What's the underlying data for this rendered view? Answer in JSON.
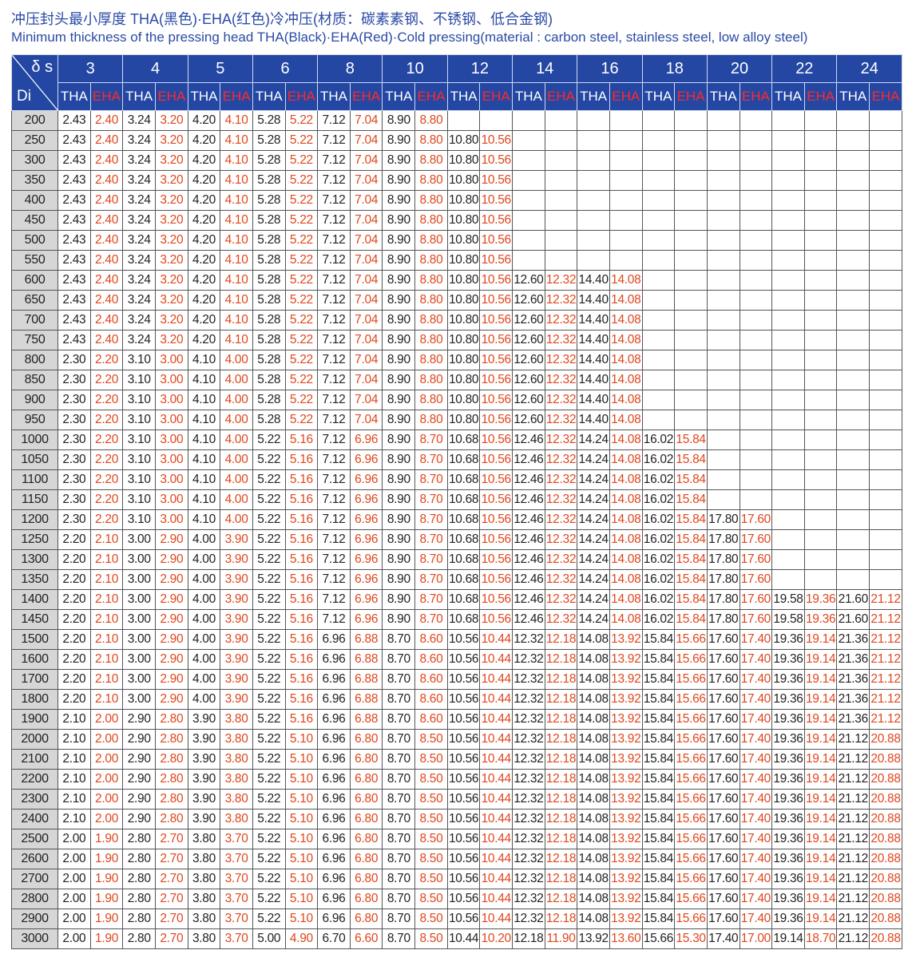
{
  "title_cn": "冲压封头最小厚度  THA(黑色)·EHA(红色)冷冲压(材质：碳素素钢、不锈钢、低合金钢)",
  "title_en": "Minimum thickness of the pressing head THA(Black)·EHA(Red)·Cold pressing(material : carbon steel, stainless steel, low alloy steel)",
  "colors": {
    "header_bg": "#2347a3",
    "eha_red": "#e0461c",
    "di_bg": "#d6d6d6",
    "title": "#2a4aa6"
  },
  "table": {
    "corner_top": "δ s",
    "corner_bottom": "Di",
    "thickness": [
      "3",
      "4",
      "5",
      "6",
      "8",
      "10",
      "12",
      "14",
      "16",
      "18",
      "20",
      "22",
      "24"
    ],
    "sub": [
      "THA",
      "EHA"
    ],
    "rows": [
      [
        "200",
        "2.43",
        "2.40",
        "3.24",
        "3.20",
        "4.20",
        "4.10",
        "5.28",
        "5.22",
        "7.12",
        "7.04",
        "8.90",
        "8.80",
        "",
        "",
        "",
        "",
        "",
        "",
        "",
        "",
        "",
        "",
        "",
        "",
        "",
        ""
      ],
      [
        "250",
        "2.43",
        "2.40",
        "3.24",
        "3.20",
        "4.20",
        "4.10",
        "5.28",
        "5.22",
        "7.12",
        "7.04",
        "8.90",
        "8.80",
        "10.80",
        "10.56",
        "",
        "",
        "",
        "",
        "",
        "",
        "",
        "",
        "",
        "",
        "",
        ""
      ],
      [
        "300",
        "2.43",
        "2.40",
        "3.24",
        "3.20",
        "4.20",
        "4.10",
        "5.28",
        "5.22",
        "7.12",
        "7.04",
        "8.90",
        "8.80",
        "10.80",
        "10.56",
        "",
        "",
        "",
        "",
        "",
        "",
        "",
        "",
        "",
        "",
        "",
        ""
      ],
      [
        "350",
        "2.43",
        "2.40",
        "3.24",
        "3.20",
        "4.20",
        "4.10",
        "5.28",
        "5.22",
        "7.12",
        "7.04",
        "8.90",
        "8.80",
        "10.80",
        "10.56",
        "",
        "",
        "",
        "",
        "",
        "",
        "",
        "",
        "",
        "",
        "",
        ""
      ],
      [
        "400",
        "2.43",
        "2.40",
        "3.24",
        "3.20",
        "4.20",
        "4.10",
        "5.28",
        "5.22",
        "7.12",
        "7.04",
        "8.90",
        "8.80",
        "10.80",
        "10.56",
        "",
        "",
        "",
        "",
        "",
        "",
        "",
        "",
        "",
        "",
        "",
        ""
      ],
      [
        "450",
        "2.43",
        "2.40",
        "3.24",
        "3.20",
        "4.20",
        "4.10",
        "5.28",
        "5.22",
        "7.12",
        "7.04",
        "8.90",
        "8.80",
        "10.80",
        "10.56",
        "",
        "",
        "",
        "",
        "",
        "",
        "",
        "",
        "",
        "",
        "",
        ""
      ],
      [
        "500",
        "2.43",
        "2.40",
        "3.24",
        "3.20",
        "4.20",
        "4.10",
        "5.28",
        "5.22",
        "7.12",
        "7.04",
        "8.90",
        "8.80",
        "10.80",
        "10.56",
        "",
        "",
        "",
        "",
        "",
        "",
        "",
        "",
        "",
        "",
        "",
        ""
      ],
      [
        "550",
        "2.43",
        "2.40",
        "3.24",
        "3.20",
        "4.20",
        "4.10",
        "5.28",
        "5.22",
        "7.12",
        "7.04",
        "8.90",
        "8.80",
        "10.80",
        "10.56",
        "",
        "",
        "",
        "",
        "",
        "",
        "",
        "",
        "",
        "",
        "",
        ""
      ],
      [
        "600",
        "2.43",
        "2.40",
        "3.24",
        "3.20",
        "4.20",
        "4.10",
        "5.28",
        "5.22",
        "7.12",
        "7.04",
        "8.90",
        "8.80",
        "10.80",
        "10.56",
        "12.60",
        "12.32",
        "14.40",
        "14.08",
        "",
        "",
        "",
        "",
        "",
        "",
        "",
        ""
      ],
      [
        "650",
        "2.43",
        "2.40",
        "3.24",
        "3.20",
        "4.20",
        "4.10",
        "5.28",
        "5.22",
        "7.12",
        "7.04",
        "8.90",
        "8.80",
        "10.80",
        "10.56",
        "12.60",
        "12.32",
        "14.40",
        "14.08",
        "",
        "",
        "",
        "",
        "",
        "",
        "",
        ""
      ],
      [
        "700",
        "2.43",
        "2.40",
        "3.24",
        "3.20",
        "4.20",
        "4.10",
        "5.28",
        "5.22",
        "7.12",
        "7.04",
        "8.90",
        "8.80",
        "10.80",
        "10.56",
        "12.60",
        "12.32",
        "14.40",
        "14.08",
        "",
        "",
        "",
        "",
        "",
        "",
        "",
        ""
      ],
      [
        "750",
        "2.43",
        "2.40",
        "3.24",
        "3.20",
        "4.20",
        "4.10",
        "5.28",
        "5.22",
        "7.12",
        "7.04",
        "8.90",
        "8.80",
        "10.80",
        "10.56",
        "12.60",
        "12.32",
        "14.40",
        "14.08",
        "",
        "",
        "",
        "",
        "",
        "",
        "",
        ""
      ],
      [
        "800",
        "2.30",
        "2.20",
        "3.10",
        "3.00",
        "4.10",
        "4.00",
        "5.28",
        "5.22",
        "7.12",
        "7.04",
        "8.90",
        "8.80",
        "10.80",
        "10.56",
        "12.60",
        "12.32",
        "14.40",
        "14.08",
        "",
        "",
        "",
        "",
        "",
        "",
        "",
        ""
      ],
      [
        "850",
        "2.30",
        "2.20",
        "3.10",
        "3.00",
        "4.10",
        "4.00",
        "5.28",
        "5.22",
        "7.12",
        "7.04",
        "8.90",
        "8.80",
        "10.80",
        "10.56",
        "12.60",
        "12.32",
        "14.40",
        "14.08",
        "",
        "",
        "",
        "",
        "",
        "",
        "",
        ""
      ],
      [
        "900",
        "2.30",
        "2.20",
        "3.10",
        "3.00",
        "4.10",
        "4.00",
        "5.28",
        "5.22",
        "7.12",
        "7.04",
        "8.90",
        "8.80",
        "10.80",
        "10.56",
        "12.60",
        "12.32",
        "14.40",
        "14.08",
        "",
        "",
        "",
        "",
        "",
        "",
        "",
        ""
      ],
      [
        "950",
        "2.30",
        "2.20",
        "3.10",
        "3.00",
        "4.10",
        "4.00",
        "5.28",
        "5.22",
        "7.12",
        "7.04",
        "8.90",
        "8.80",
        "10.80",
        "10.56",
        "12.60",
        "12.32",
        "14.40",
        "14.08",
        "",
        "",
        "",
        "",
        "",
        "",
        "",
        ""
      ],
      [
        "1000",
        "2.30",
        "2.20",
        "3.10",
        "3.00",
        "4.10",
        "4.00",
        "5.22",
        "5.16",
        "7.12",
        "6.96",
        "8.90",
        "8.70",
        "10.68",
        "10.56",
        "12.46",
        "12.32",
        "14.24",
        "14.08",
        "16.02",
        "15.84",
        "",
        "",
        "",
        "",
        "",
        ""
      ],
      [
        "1050",
        "2.30",
        "2.20",
        "3.10",
        "3.00",
        "4.10",
        "4.00",
        "5.22",
        "5.16",
        "7.12",
        "6.96",
        "8.90",
        "8.70",
        "10.68",
        "10.56",
        "12.46",
        "12.32",
        "14.24",
        "14.08",
        "16.02",
        "15.84",
        "",
        "",
        "",
        "",
        "",
        ""
      ],
      [
        "1100",
        "2.30",
        "2.20",
        "3.10",
        "3.00",
        "4.10",
        "4.00",
        "5.22",
        "5.16",
        "7.12",
        "6.96",
        "8.90",
        "8.70",
        "10.68",
        "10.56",
        "12.46",
        "12.32",
        "14.24",
        "14.08",
        "16.02",
        "15.84",
        "",
        "",
        "",
        "",
        "",
        ""
      ],
      [
        "1150",
        "2.30",
        "2.20",
        "3.10",
        "3.00",
        "4.10",
        "4.00",
        "5.22",
        "5.16",
        "7.12",
        "6.96",
        "8.90",
        "8.70",
        "10.68",
        "10.56",
        "12.46",
        "12.32",
        "14.24",
        "14.08",
        "16.02",
        "15.84",
        "",
        "",
        "",
        "",
        "",
        ""
      ],
      [
        "1200",
        "2.30",
        "2.20",
        "3.10",
        "3.00",
        "4.10",
        "4.00",
        "5.22",
        "5.16",
        "7.12",
        "6.96",
        "8.90",
        "8.70",
        "10.68",
        "10.56",
        "12.46",
        "12.32",
        "14.24",
        "14.08",
        "16.02",
        "15.84",
        "17.80",
        "17.60",
        "",
        "",
        "",
        ""
      ],
      [
        "1250",
        "2.20",
        "2.10",
        "3.00",
        "2.90",
        "4.00",
        "3.90",
        "5.22",
        "5.16",
        "7.12",
        "6.96",
        "8.90",
        "8.70",
        "10.68",
        "10.56",
        "12.46",
        "12.32",
        "14.24",
        "14.08",
        "16.02",
        "15.84",
        "17.80",
        "17.60",
        "",
        "",
        "",
        ""
      ],
      [
        "1300",
        "2.20",
        "2.10",
        "3.00",
        "2.90",
        "4.00",
        "3.90",
        "5.22",
        "5.16",
        "7.12",
        "6.96",
        "8.90",
        "8.70",
        "10.68",
        "10.56",
        "12.46",
        "12.32",
        "14.24",
        "14.08",
        "16.02",
        "15.84",
        "17.80",
        "17.60",
        "",
        "",
        "",
        ""
      ],
      [
        "1350",
        "2.20",
        "2.10",
        "3.00",
        "2.90",
        "4.00",
        "3.90",
        "5.22",
        "5.16",
        "7.12",
        "6.96",
        "8.90",
        "8.70",
        "10.68",
        "10.56",
        "12.46",
        "12.32",
        "14.24",
        "14.08",
        "16.02",
        "15.84",
        "17.80",
        "17.60",
        "",
        "",
        "",
        ""
      ],
      [
        "1400",
        "2.20",
        "2.10",
        "3.00",
        "2.90",
        "4.00",
        "3.90",
        "5.22",
        "5.16",
        "7.12",
        "6.96",
        "8.90",
        "8.70",
        "10.68",
        "10.56",
        "12.46",
        "12.32",
        "14.24",
        "14.08",
        "16.02",
        "15.84",
        "17.80",
        "17.60",
        "19.58",
        "19.36",
        "21.60",
        "21.12"
      ],
      [
        "1450",
        "2.20",
        "2.10",
        "3.00",
        "2.90",
        "4.00",
        "3.90",
        "5.22",
        "5.16",
        "7.12",
        "6.96",
        "8.90",
        "8.70",
        "10.68",
        "10.56",
        "12.46",
        "12.32",
        "14.24",
        "14.08",
        "16.02",
        "15.84",
        "17.80",
        "17.60",
        "19.58",
        "19.36",
        "21.60",
        "21.12"
      ],
      [
        "1500",
        "2.20",
        "2.10",
        "3.00",
        "2.90",
        "4.00",
        "3.90",
        "5.22",
        "5.16",
        "6.96",
        "6.88",
        "8.70",
        "8.60",
        "10.56",
        "10.44",
        "12.32",
        "12.18",
        "14.08",
        "13.92",
        "15.84",
        "15.66",
        "17.60",
        "17.40",
        "19.36",
        "19.14",
        "21.36",
        "21.12"
      ],
      [
        "1600",
        "2.20",
        "2.10",
        "3.00",
        "2.90",
        "4.00",
        "3.90",
        "5.22",
        "5.16",
        "6.96",
        "6.88",
        "8.70",
        "8.60",
        "10.56",
        "10.44",
        "12.32",
        "12.18",
        "14.08",
        "13.92",
        "15.84",
        "15.66",
        "17.60",
        "17.40",
        "19.36",
        "19.14",
        "21.36",
        "21.12"
      ],
      [
        "1700",
        "2.20",
        "2.10",
        "3.00",
        "2.90",
        "4.00",
        "3.90",
        "5.22",
        "5.16",
        "6.96",
        "6.88",
        "8.70",
        "8.60",
        "10.56",
        "10.44",
        "12.32",
        "12.18",
        "14.08",
        "13.92",
        "15.84",
        "15.66",
        "17.60",
        "17.40",
        "19.36",
        "19.14",
        "21.36",
        "21.12"
      ],
      [
        "1800",
        "2.20",
        "2.10",
        "3.00",
        "2.90",
        "4.00",
        "3.90",
        "5.22",
        "5.16",
        "6.96",
        "6.88",
        "8.70",
        "8.60",
        "10.56",
        "10.44",
        "12.32",
        "12.18",
        "14.08",
        "13.92",
        "15.84",
        "15.66",
        "17.60",
        "17.40",
        "19.36",
        "19.14",
        "21.36",
        "21.12"
      ],
      [
        "1900",
        "2.10",
        "2.00",
        "2.90",
        "2.80",
        "3.90",
        "3.80",
        "5.22",
        "5.16",
        "6.96",
        "6.88",
        "8.70",
        "8.60",
        "10.56",
        "10.44",
        "12.32",
        "12.18",
        "14.08",
        "13.92",
        "15.84",
        "15.66",
        "17.60",
        "17.40",
        "19.36",
        "19.14",
        "21.36",
        "21.12"
      ],
      [
        "2000",
        "2.10",
        "2.00",
        "2.90",
        "2.80",
        "3.90",
        "3.80",
        "5.22",
        "5.10",
        "6.96",
        "6.80",
        "8.70",
        "8.50",
        "10.56",
        "10.44",
        "12.32",
        "12.18",
        "14.08",
        "13.92",
        "15.84",
        "15.66",
        "17.60",
        "17.40",
        "19.36",
        "19.14",
        "21.12",
        "20.88"
      ],
      [
        "2100",
        "2.10",
        "2.00",
        "2.90",
        "2.80",
        "3.90",
        "3.80",
        "5.22",
        "5.10",
        "6.96",
        "6.80",
        "8.70",
        "8.50",
        "10.56",
        "10.44",
        "12.32",
        "12.18",
        "14.08",
        "13.92",
        "15.84",
        "15.66",
        "17.60",
        "17.40",
        "19.36",
        "19.14",
        "21.12",
        "20.88"
      ],
      [
        "2200",
        "2.10",
        "2.00",
        "2.90",
        "2.80",
        "3.90",
        "3.80",
        "5.22",
        "5.10",
        "6.96",
        "6.80",
        "8.70",
        "8.50",
        "10.56",
        "10.44",
        "12.32",
        "12.18",
        "14.08",
        "13.92",
        "15.84",
        "15.66",
        "17.60",
        "17.40",
        "19.36",
        "19.14",
        "21.12",
        "20.88"
      ],
      [
        "2300",
        "2.10",
        "2.00",
        "2.90",
        "2.80",
        "3.90",
        "3.80",
        "5.22",
        "5.10",
        "6.96",
        "6.80",
        "8.70",
        "8.50",
        "10.56",
        "10.44",
        "12.32",
        "12.18",
        "14.08",
        "13.92",
        "15.84",
        "15.66",
        "17.60",
        "17.40",
        "19.36",
        "19.14",
        "21.12",
        "20.88"
      ],
      [
        "2400",
        "2.10",
        "2.00",
        "2.90",
        "2.80",
        "3.90",
        "3.80",
        "5.22",
        "5.10",
        "6.96",
        "6.80",
        "8.70",
        "8.50",
        "10.56",
        "10.44",
        "12.32",
        "12.18",
        "14.08",
        "13.92",
        "15.84",
        "15.66",
        "17.60",
        "17.40",
        "19.36",
        "19.14",
        "21.12",
        "20.88"
      ],
      [
        "2500",
        "2.00",
        "1.90",
        "2.80",
        "2.70",
        "3.80",
        "3.70",
        "5.22",
        "5.10",
        "6.96",
        "6.80",
        "8.70",
        "8.50",
        "10.56",
        "10.44",
        "12.32",
        "12.18",
        "14.08",
        "13.92",
        "15.84",
        "15.66",
        "17.60",
        "17.40",
        "19.36",
        "19.14",
        "21.12",
        "20.88"
      ],
      [
        "2600",
        "2.00",
        "1.90",
        "2.80",
        "2.70",
        "3.80",
        "3.70",
        "5.22",
        "5.10",
        "6.96",
        "6.80",
        "8.70",
        "8.50",
        "10.56",
        "10.44",
        "12.32",
        "12.18",
        "14.08",
        "13.92",
        "15.84",
        "15.66",
        "17.60",
        "17.40",
        "19.36",
        "19.14",
        "21.12",
        "20.88"
      ],
      [
        "2700",
        "2.00",
        "1.90",
        "2.80",
        "2.70",
        "3.80",
        "3.70",
        "5.22",
        "5.10",
        "6.96",
        "6.80",
        "8.70",
        "8.50",
        "10.56",
        "10.44",
        "12.32",
        "12.18",
        "14.08",
        "13.92",
        "15.84",
        "15.66",
        "17.60",
        "17.40",
        "19.36",
        "19.14",
        "21.12",
        "20.88"
      ],
      [
        "2800",
        "2.00",
        "1.90",
        "2.80",
        "2.70",
        "3.80",
        "3.70",
        "5.22",
        "5.10",
        "6.96",
        "6.80",
        "8.70",
        "8.50",
        "10.56",
        "10.44",
        "12.32",
        "12.18",
        "14.08",
        "13.92",
        "15.84",
        "15.66",
        "17.60",
        "17.40",
        "19.36",
        "19.14",
        "21.12",
        "20.88"
      ],
      [
        "2900",
        "2.00",
        "1.90",
        "2.80",
        "2.70",
        "3.80",
        "3.70",
        "5.22",
        "5.10",
        "6.96",
        "6.80",
        "8.70",
        "8.50",
        "10.56",
        "10.44",
        "12.32",
        "12.18",
        "14.08",
        "13.92",
        "15.84",
        "15.66",
        "17.60",
        "17.40",
        "19.36",
        "19.14",
        "21.12",
        "20.88"
      ],
      [
        "3000",
        "2.00",
        "1.90",
        "2.80",
        "2.70",
        "3.80",
        "3.70",
        "5.00",
        "4.90",
        "6.70",
        "6.60",
        "8.70",
        "8.50",
        "10.44",
        "10.20",
        "12.18",
        "11.90",
        "13.92",
        "13.60",
        "15.66",
        "15.30",
        "17.40",
        "17.00",
        "19.14",
        "18.70",
        "21.12",
        "20.88"
      ]
    ]
  }
}
